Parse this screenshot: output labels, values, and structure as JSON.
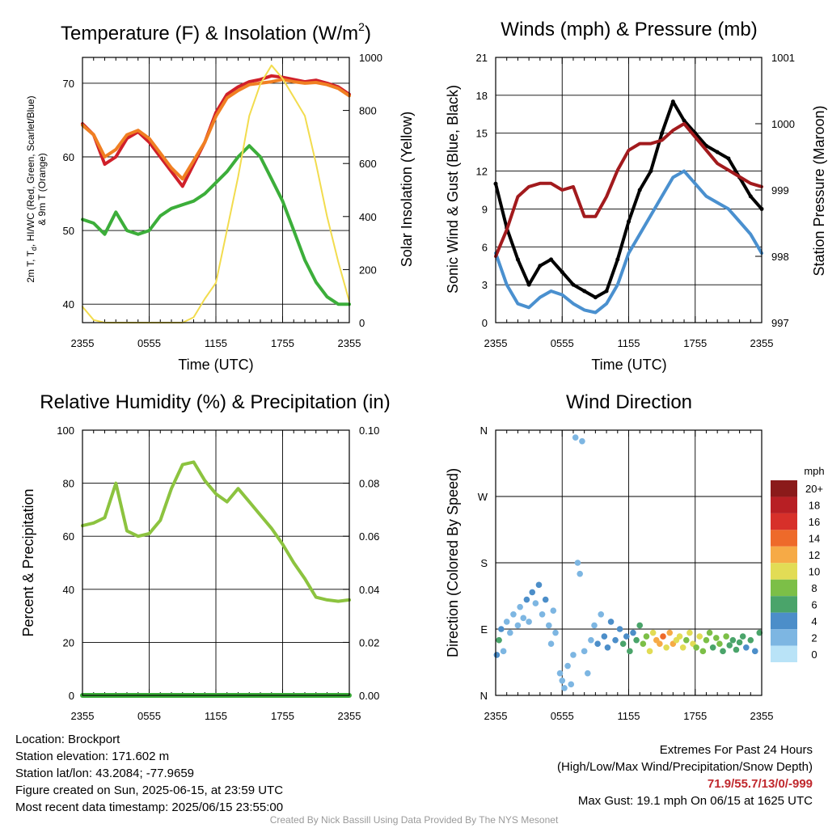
{
  "panels": {
    "temp": {
      "title": "Temperature (F) & Insolation (W/m",
      "title_sup": "2",
      "title_close": ")",
      "ylabel_line1": "2m T, T",
      "ylabel_sub": "d",
      "ylabel_line1b": ", HI/WC (Red, Green, Scarlet/Blue)",
      "ylabel_line2": "& 9m T (Orange)",
      "y2label": "Solar Insolation (Yellow)",
      "xlabel": "Time (UTC)"
    },
    "wind": {
      "title": "Winds (mph) & Pressure (mb)",
      "ylabel": "Sonic Wind & Gust (Blue, Black)",
      "y2label": "Station Pressure (Maroon)",
      "xlabel": "Time (UTC)"
    },
    "rh": {
      "title": "Relative Humidity (%) & Precipitation (in)",
      "ylabel": "Percent & Precipitation"
    },
    "dir": {
      "title": "Wind Direction",
      "ylabel": "Direction (Colored By Speed)",
      "colorbar_title": "mph"
    }
  },
  "footer": {
    "location": "Location: Brockport",
    "elevation": "Station elevation: 171.602 m",
    "latlon": "Station lat/lon: 43.2084; -77.9659",
    "created": "Figure created on Sun, 2025-06-15, at 23:59 UTC",
    "recent": "Most recent data timestamp: 2025/06/15 23:55:00",
    "extremes_title": "Extremes For Past 24 Hours",
    "extremes_legend": "(High/Low/Max Wind/Precipitation/Snow Depth)",
    "extremes_values": "71.9/55.7/13/0/-999",
    "max_gust": "Max Gust: 19.1 mph On 06/15 at 1625 UTC",
    "credit": "Created By Nick Bassill Using Data Provided By The NYS Mesonet"
  },
  "chart_data": [
    {
      "type": "line",
      "title": "Temperature (F) & Insolation (W/m2)",
      "xlabel": "Time (UTC)",
      "ylabel": "2m T, Td, HI/WC (Red, Green, Scarlet/Blue) & 9m T (Orange)",
      "y2label": "Solar Insolation (Yellow)",
      "x_ticks": [
        "2355",
        "0555",
        "1155",
        "1755",
        "2355"
      ],
      "x": [
        0,
        1,
        2,
        3,
        4,
        5,
        6,
        7,
        8,
        9,
        10,
        11,
        12,
        13,
        14,
        15,
        16,
        17,
        18,
        19,
        20,
        21,
        22,
        23,
        24
      ],
      "ylim": [
        37.5,
        73.5
      ],
      "yticks": [
        40,
        50,
        60,
        70
      ],
      "y2lim": [
        0,
        1000
      ],
      "y2ticks": [
        0,
        200,
        400,
        600,
        800,
        1000
      ],
      "grid": true,
      "series": [
        {
          "name": "2m T",
          "color": "#d0202a",
          "axis": "left",
          "values": [
            64.5,
            63,
            59,
            60,
            62.5,
            63.4,
            62,
            60,
            58,
            56,
            59,
            62,
            66,
            68.5,
            69.5,
            70.2,
            70.5,
            71.0,
            70.8,
            70.5,
            70.2,
            70.4,
            70.0,
            69.5,
            68.5
          ]
        },
        {
          "name": "9m T",
          "color": "#f07f22",
          "axis": "left",
          "values": [
            64.3,
            63,
            60,
            61,
            63,
            63.6,
            62.5,
            60.5,
            58.5,
            57,
            59.5,
            62,
            65.5,
            68,
            69,
            69.8,
            70.0,
            70.2,
            70.5,
            70.2,
            70.0,
            70.1,
            69.8,
            69.3,
            68.3
          ]
        },
        {
          "name": "Td",
          "color": "#3cae3a",
          "axis": "left",
          "values": [
            51.5,
            51,
            49.5,
            52.5,
            50,
            49.5,
            50,
            52,
            53,
            53.5,
            54,
            55,
            56.5,
            58,
            60,
            61.5,
            60,
            57,
            54,
            50,
            46,
            43,
            41,
            40,
            40
          ]
        },
        {
          "name": "Insolation",
          "color": "#f2dc4e",
          "axis": "right",
          "values": [
            60,
            10,
            0,
            0,
            0,
            0,
            0,
            0,
            0,
            0,
            20,
            90,
            150,
            350,
            550,
            780,
            900,
            970,
            920,
            850,
            780,
            600,
            400,
            230,
            80
          ]
        }
      ]
    },
    {
      "type": "line",
      "title": "Winds (mph) & Pressure (mb)",
      "xlabel": "Time (UTC)",
      "ylabel": "Sonic Wind & Gust (Blue, Black)",
      "y2label": "Station Pressure (Maroon)",
      "x_ticks": [
        "2355",
        "0555",
        "1155",
        "1755",
        "2355"
      ],
      "x": [
        0,
        1,
        2,
        3,
        4,
        5,
        6,
        7,
        8,
        9,
        10,
        11,
        12,
        13,
        14,
        15,
        16,
        17,
        18,
        19,
        20,
        21,
        22,
        23,
        24
      ],
      "ylim": [
        0,
        21
      ],
      "yticks": [
        0,
        3,
        6,
        9,
        12,
        15,
        18,
        21
      ],
      "y2lim": [
        997,
        1001
      ],
      "y2ticks": [
        997,
        998,
        999,
        1000,
        1001
      ],
      "grid": true,
      "series": [
        {
          "name": "Sonic Wind",
          "color": "#4a90cf",
          "axis": "left",
          "values": [
            5.5,
            3,
            1.5,
            1.2,
            2.0,
            2.5,
            2.2,
            1.5,
            1.0,
            0.8,
            1.5,
            3.0,
            5.5,
            7.0,
            8.5,
            10,
            11.5,
            12.0,
            11.0,
            10.0,
            9.5,
            9.0,
            8.0,
            7.0,
            5.5
          ]
        },
        {
          "name": "Gust",
          "color": "#000000",
          "axis": "left",
          "values": [
            11,
            7.5,
            5,
            3,
            4.5,
            5,
            4,
            3,
            2.5,
            2,
            2.5,
            5,
            8,
            10.5,
            12,
            15,
            17.5,
            16,
            15,
            14,
            13.5,
            13,
            11.5,
            10,
            9
          ]
        },
        {
          "name": "Station Pressure",
          "color": "#a21a1d",
          "axis": "right",
          "values": [
            998.0,
            998.4,
            998.9,
            999.05,
            999.1,
            999.1,
            999.0,
            999.05,
            998.6,
            998.6,
            998.9,
            999.3,
            999.6,
            999.7,
            999.7,
            999.75,
            999.9,
            1000.0,
            999.8,
            999.6,
            999.4,
            999.3,
            999.2,
            999.1,
            999.05
          ]
        }
      ]
    },
    {
      "type": "line",
      "title": "Relative Humidity (%) & Precipitation (in)",
      "xlabel": "",
      "ylabel": "Percent & Precipitation",
      "x_ticks": [
        "2355",
        "0555",
        "1155",
        "1755",
        "2355"
      ],
      "x": [
        0,
        1,
        2,
        3,
        4,
        5,
        6,
        7,
        8,
        9,
        10,
        11,
        12,
        13,
        14,
        15,
        16,
        17,
        18,
        19,
        20,
        21,
        22,
        23,
        24
      ],
      "ylim": [
        0,
        100
      ],
      "yticks": [
        0,
        20,
        40,
        60,
        80,
        100
      ],
      "y2lim": [
        0,
        0.1
      ],
      "y2ticks": [
        0.0,
        0.02,
        0.04,
        0.06,
        0.08,
        0.1
      ],
      "y2tick_labels": [
        "0.00",
        "0.02",
        "0.04",
        "0.06",
        "0.08",
        "0.10"
      ],
      "grid": true,
      "series": [
        {
          "name": "Relative Humidity",
          "color": "#8cc33f",
          "axis": "left",
          "values": [
            64,
            65,
            67,
            80,
            62,
            60,
            61,
            66,
            78,
            87,
            88,
            81,
            76,
            73,
            78,
            73,
            68,
            63,
            57,
            50,
            44,
            37,
            36,
            35.5,
            36
          ]
        },
        {
          "name": "Precipitation",
          "color": "#3cae3a",
          "axis": "right",
          "values": [
            0,
            0,
            0,
            0,
            0,
            0,
            0,
            0,
            0,
            0,
            0,
            0,
            0,
            0,
            0,
            0,
            0,
            0,
            0,
            0,
            0,
            0,
            0,
            0,
            0
          ]
        }
      ]
    },
    {
      "type": "scatter",
      "title": "Wind Direction",
      "xlabel": "",
      "ylabel": "Direction (Colored By Speed)",
      "x_ticks": [
        "2355",
        "0555",
        "1155",
        "1755",
        "2355"
      ],
      "ylim": [
        0,
        360
      ],
      "yticks": [
        0,
        90,
        180,
        270,
        360
      ],
      "ytick_labels": [
        "N",
        "E",
        "S",
        "W",
        "N"
      ],
      "grid": true,
      "colorbar": {
        "title": "mph",
        "labels": [
          "0",
          "2",
          "4",
          "6",
          "8",
          "10",
          "12",
          "14",
          "16",
          "18",
          "20+"
        ],
        "colors": [
          "#b9e3f7",
          "#7db6e2",
          "#4c8ec9",
          "#4aa46a",
          "#7cbf47",
          "#e2dc55",
          "#f6aa46",
          "#ee6a2a",
          "#d7302a",
          "#b81f24",
          "#8b1a1a"
        ]
      },
      "points": [
        [
          0.1,
          55,
          4
        ],
        [
          0.3,
          75,
          6
        ],
        [
          0.5,
          90,
          3
        ],
        [
          0.7,
          60,
          2
        ],
        [
          1.0,
          100,
          2
        ],
        [
          1.3,
          85,
          2
        ],
        [
          1.6,
          110,
          1
        ],
        [
          2.0,
          95,
          1
        ],
        [
          2.2,
          120,
          2
        ],
        [
          2.5,
          105,
          1
        ],
        [
          2.8,
          130,
          3
        ],
        [
          3.0,
          100,
          2
        ],
        [
          3.3,
          140,
          3
        ],
        [
          3.6,
          125,
          2
        ],
        [
          3.9,
          150,
          3
        ],
        [
          4.2,
          110,
          2
        ],
        [
          4.5,
          130,
          3
        ],
        [
          4.8,
          95,
          2
        ],
        [
          5.0,
          70,
          1
        ],
        [
          5.2,
          115,
          2
        ],
        [
          5.4,
          85,
          1
        ],
        [
          5.8,
          30,
          1
        ],
        [
          6.0,
          20,
          1
        ],
        [
          6.2,
          10,
          1
        ],
        [
          6.5,
          40,
          1
        ],
        [
          6.8,
          15,
          1
        ],
        [
          7.0,
          55,
          1
        ],
        [
          7.2,
          350,
          1
        ],
        [
          7.4,
          180,
          1
        ],
        [
          7.6,
          165,
          2
        ],
        [
          7.8,
          345,
          1
        ],
        [
          8.0,
          60,
          2
        ],
        [
          8.3,
          30,
          1
        ],
        [
          8.6,
          75,
          2
        ],
        [
          8.9,
          95,
          2
        ],
        [
          9.2,
          70,
          3
        ],
        [
          9.5,
          110,
          2
        ],
        [
          9.8,
          80,
          3
        ],
        [
          10.1,
          65,
          3
        ],
        [
          10.4,
          100,
          4
        ],
        [
          10.8,
          75,
          3
        ],
        [
          11.2,
          90,
          4
        ],
        [
          11.5,
          70,
          5
        ],
        [
          11.8,
          80,
          4
        ],
        [
          12.1,
          60,
          6
        ],
        [
          12.4,
          85,
          4
        ],
        [
          12.7,
          75,
          6
        ],
        [
          13.0,
          95,
          5
        ],
        [
          13.3,
          70,
          7
        ],
        [
          13.6,
          80,
          8
        ],
        [
          13.9,
          60,
          9
        ],
        [
          14.2,
          85,
          10
        ],
        [
          14.5,
          75,
          12
        ],
        [
          14.8,
          70,
          11
        ],
        [
          15.1,
          80,
          13
        ],
        [
          15.4,
          65,
          10
        ],
        [
          15.7,
          85,
          12
        ],
        [
          16.0,
          70,
          11
        ],
        [
          16.3,
          75,
          9
        ],
        [
          16.6,
          80,
          10
        ],
        [
          16.9,
          65,
          9
        ],
        [
          17.2,
          75,
          8
        ],
        [
          17.5,
          85,
          9
        ],
        [
          17.8,
          70,
          10
        ],
        [
          18.1,
          65,
          8
        ],
        [
          18.4,
          80,
          9
        ],
        [
          18.7,
          60,
          8
        ],
        [
          19.0,
          75,
          7
        ],
        [
          19.3,
          85,
          8
        ],
        [
          19.6,
          65,
          6
        ],
        [
          19.9,
          78,
          7
        ],
        [
          20.2,
          70,
          8
        ],
        [
          20.5,
          60,
          6
        ],
        [
          20.8,
          80,
          7
        ],
        [
          21.1,
          68,
          6
        ],
        [
          21.4,
          75,
          5
        ],
        [
          21.7,
          62,
          6
        ],
        [
          22.0,
          72,
          5
        ],
        [
          22.3,
          80,
          6
        ],
        [
          22.6,
          65,
          4
        ],
        [
          23.0,
          75,
          5
        ],
        [
          23.4,
          60,
          4
        ],
        [
          23.8,
          85,
          5
        ]
      ]
    }
  ]
}
